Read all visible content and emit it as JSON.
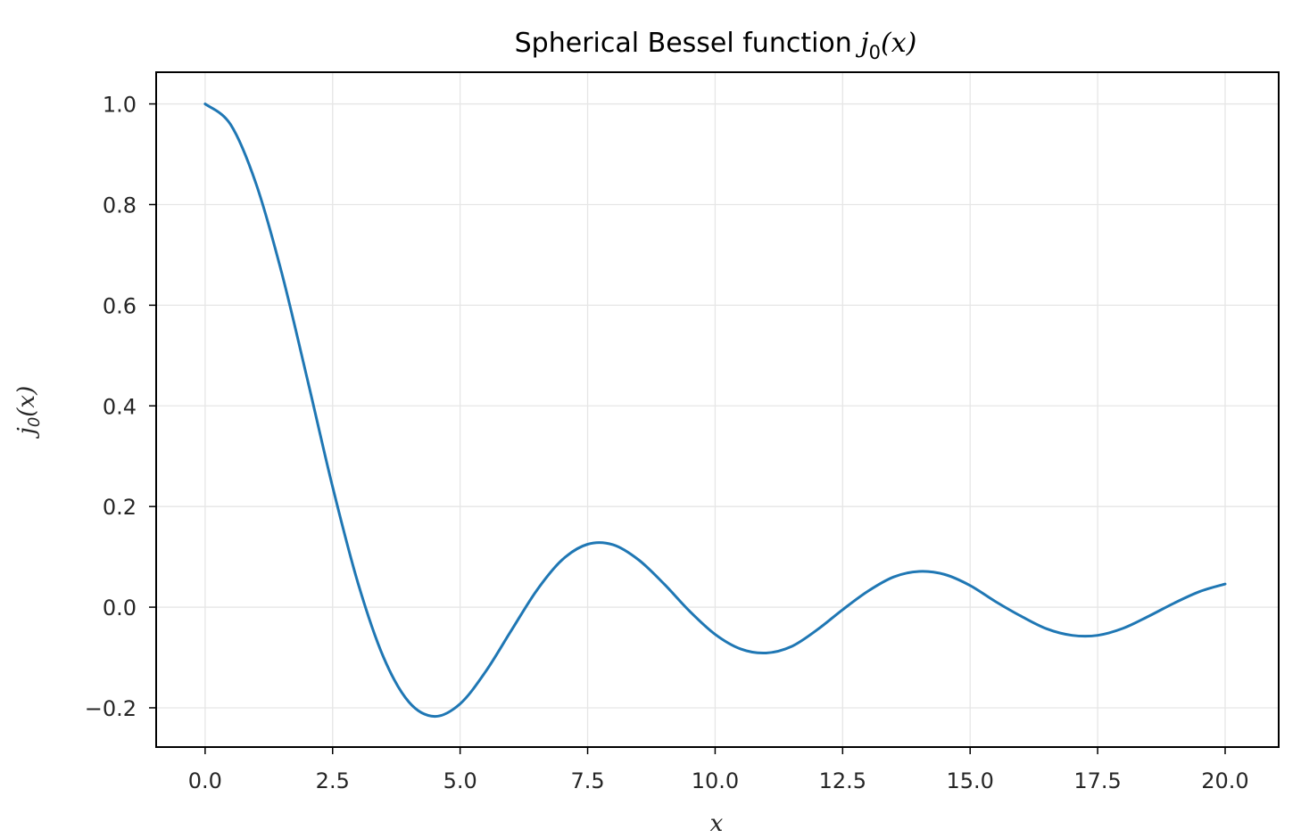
{
  "chart_data": {
    "type": "line",
    "title": "Spherical Bessel function j₀(x)",
    "title_parts": {
      "prefix": "Spherical Bessel function ",
      "func": "j",
      "sub": "0",
      "arg": "(x)"
    },
    "xlabel": "x",
    "ylabel": "j₀(x)",
    "ylabel_parts": {
      "func": "j",
      "sub": "0",
      "arg": "(x)"
    },
    "xlim": [
      -0.96,
      21.05
    ],
    "ylim": [
      -0.278,
      1.063
    ],
    "x_ticks": [
      0.0,
      2.5,
      5.0,
      7.5,
      10.0,
      12.5,
      15.0,
      17.5,
      20.0
    ],
    "x_tick_labels": [
      "0.0",
      "2.5",
      "5.0",
      "7.5",
      "10.0",
      "12.5",
      "15.0",
      "17.5",
      "20.0"
    ],
    "y_ticks": [
      -0.2,
      0.0,
      0.2,
      0.4,
      0.6,
      0.8,
      1.0
    ],
    "y_tick_labels": [
      "−0.2",
      "0.0",
      "0.2",
      "0.4",
      "0.6",
      "0.8",
      "1.0"
    ],
    "grid": true,
    "series": [
      {
        "color": "#1f77b4",
        "x": [
          0.0,
          0.5,
          1.0,
          1.5,
          2.0,
          2.5,
          3.0,
          3.5,
          4.0,
          4.5,
          5.0,
          5.5,
          6.0,
          6.5,
          7.0,
          7.5,
          8.0,
          8.5,
          9.0,
          9.5,
          10.0,
          10.5,
          11.0,
          11.5,
          12.0,
          12.5,
          13.0,
          13.5,
          14.0,
          14.5,
          15.0,
          15.5,
          16.0,
          16.5,
          17.0,
          17.5,
          18.0,
          18.5,
          19.0,
          19.5,
          20.0
        ],
        "y": [
          1.0,
          0.959,
          0.841,
          0.665,
          0.455,
          0.239,
          0.047,
          -0.1,
          -0.189,
          -0.217,
          -0.192,
          -0.128,
          -0.047,
          0.033,
          0.094,
          0.125,
          0.124,
          0.094,
          0.046,
          -0.008,
          -0.054,
          -0.083,
          -0.091,
          -0.078,
          -0.045,
          -0.005,
          0.032,
          0.06,
          0.071,
          0.065,
          0.043,
          0.011,
          -0.018,
          -0.043,
          -0.056,
          -0.056,
          -0.042,
          -0.018,
          0.008,
          0.031,
          0.046
        ]
      }
    ]
  }
}
